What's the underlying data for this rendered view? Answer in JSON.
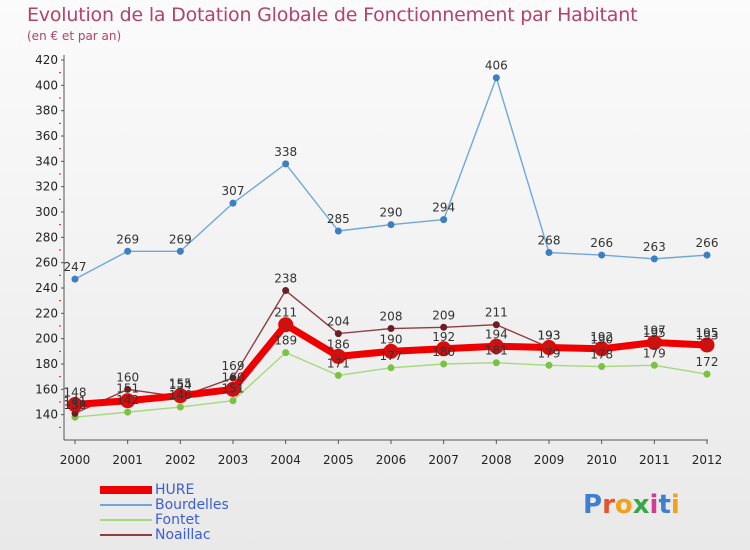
{
  "header": {
    "title": "Evolution de la Dotation Globale de Fonctionnement par Habitant",
    "subtitle": "(en € et par an)"
  },
  "logo": {
    "text": "Proxiti",
    "letter_colors": [
      "#3d7fd1",
      "#e8532b",
      "#f0a31a",
      "#39a844",
      "#d23b8f",
      "#3d7fd1",
      "#f0a31a"
    ]
  },
  "chart_data": {
    "type": "line",
    "title": "Evolution de la Dotation Globale de Fonctionnement par Habitant",
    "subtitle": "(en € et par an)",
    "xlabel": "",
    "ylabel": "",
    "x": [
      "2000",
      "2001",
      "2002",
      "2003",
      "2004",
      "2005",
      "2006",
      "2007",
      "2008",
      "2009",
      "2010",
      "2011",
      "2012"
    ],
    "ylim": [
      120,
      420
    ],
    "yticks": [
      140,
      160,
      180,
      200,
      220,
      240,
      260,
      280,
      300,
      320,
      340,
      360,
      380,
      400,
      420
    ],
    "grid": false,
    "legend_position": "bottom-left",
    "series": [
      {
        "name": "HURE",
        "color": "#ee0000",
        "marker_color": "#cc1111",
        "values": [
          148,
          151,
          155,
          160,
          211,
          186,
          190,
          192,
          194,
          193,
          192,
          197,
          195
        ],
        "labels": [
          "148",
          "151",
          "155",
          "160",
          "211",
          "186",
          "190",
          "192",
          "194",
          "193",
          "192",
          "197",
          "195"
        ]
      },
      {
        "name": "Bourdelles",
        "color": "#6fa8d8",
        "marker_color": "#3d7fc1",
        "values": [
          247,
          269,
          269,
          307,
          338,
          285,
          290,
          294,
          406,
          268,
          266,
          263,
          266
        ],
        "labels": [
          "247",
          "269",
          "269",
          "307",
          "338",
          "285",
          "290",
          "294",
          "406",
          "268",
          "266",
          "263",
          "266"
        ]
      },
      {
        "name": "Fontet",
        "color": "#a5d97a",
        "marker_color": "#7cc242",
        "values": [
          138,
          142,
          146,
          151,
          189,
          171,
          177,
          180,
          181,
          179,
          178,
          179,
          172
        ],
        "labels": [
          "138",
          "142",
          "146",
          "151",
          "189",
          "171",
          "177",
          "180",
          "181",
          "179",
          "178",
          "179",
          "172"
        ]
      },
      {
        "name": "Noaillac",
        "color": "#8e3d45",
        "marker_color": "#6a1f24",
        "values": [
          141,
          160,
          154,
          169,
          238,
          204,
          208,
          209,
          211,
          193,
          190,
          195,
          193
        ],
        "labels": [
          "141",
          "160",
          "154",
          "169",
          "238",
          "204",
          "208",
          "209",
          "211",
          "193",
          "190",
          "195",
          "193"
        ]
      }
    ]
  }
}
